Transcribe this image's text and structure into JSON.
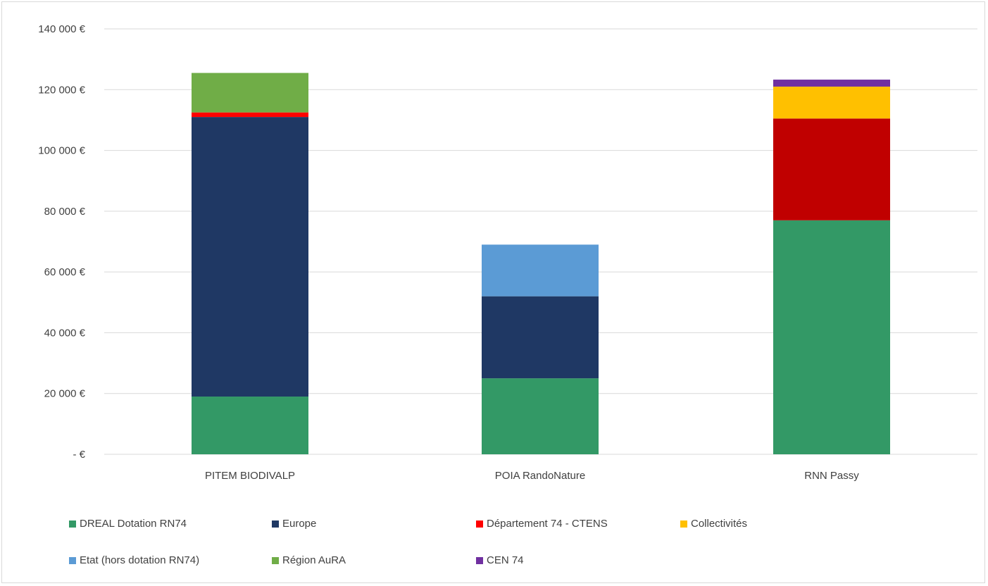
{
  "chart_data": {
    "type": "bar",
    "stacked": true,
    "categories": [
      "PITEM BIODIVALP",
      "POIA RandoNature",
      "RNN Passy"
    ],
    "ylim": [
      0,
      140000
    ],
    "yticks": [
      0,
      20000,
      40000,
      60000,
      80000,
      100000,
      120000,
      140000
    ],
    "ytick_labels": [
      "-  €",
      "20 000 €",
      "40 000 €",
      "60 000 €",
      "80 000 €",
      "100 000 €",
      "120 000 €",
      "140 000 €"
    ],
    "grid": true,
    "legend_position": "bottom",
    "series": [
      {
        "name": "DREAL Dotation RN74",
        "color": "#339966",
        "values": [
          19000,
          25000,
          77000
        ]
      },
      {
        "name": "Europe",
        "color": "#1f3864",
        "values": [
          92000,
          27000,
          0
        ]
      },
      {
        "name": "Département 74 - CTENS",
        "color": "#ff0000",
        "values": [
          1500,
          0,
          0
        ]
      },
      {
        "name": "Collectivités",
        "color": "#ffc000",
        "values": [
          0,
          0,
          10500
        ]
      },
      {
        "name": "Etat (hors dotation RN74)",
        "color": "#5b9bd5",
        "values": [
          0,
          17000,
          0
        ]
      },
      {
        "name": "Région AuRA",
        "color": "#70ad47",
        "values": [
          13000,
          0,
          0
        ]
      },
      {
        "name": "CEN 74",
        "color": "#7030a0",
        "values": [
          0,
          0,
          2300
        ]
      },
      {
        "name": "",
        "color": "#c00000",
        "values": [
          0,
          0,
          33500
        ]
      }
    ],
    "legend_order": [
      [
        "DREAL Dotation RN74",
        "Europe",
        "Département 74 - CTENS",
        "Collectivités"
      ],
      [
        "Etat (hors dotation RN74)",
        "Région AuRA",
        "CEN 74"
      ]
    ],
    "stack_order": [
      "DREAL Dotation RN74",
      "Europe",
      "Département 74 - CTENS",
      "",
      "Collectivités",
      "Etat (hors dotation RN74)",
      "Région AuRA",
      "CEN 74"
    ]
  }
}
